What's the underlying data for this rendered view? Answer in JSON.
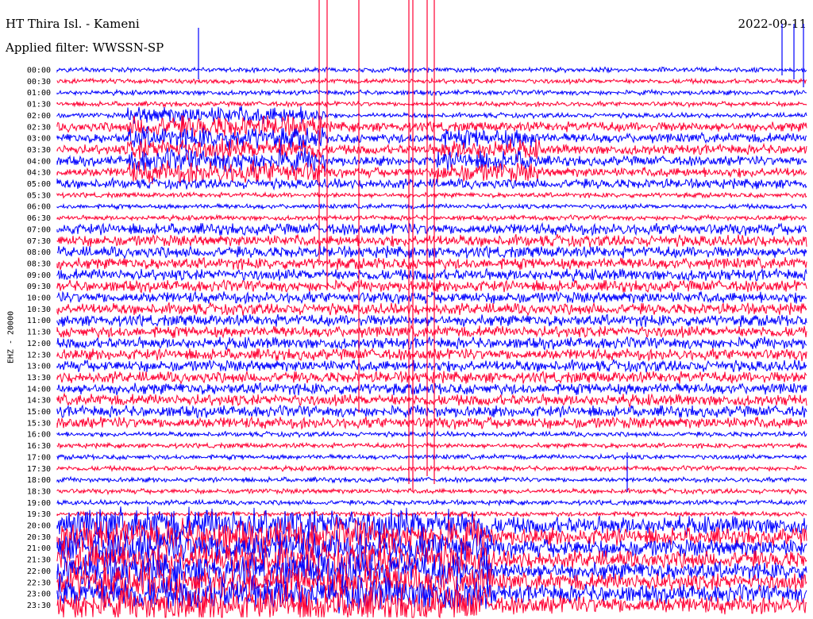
{
  "header": {
    "title": "HT Thira Isl. - Kameni",
    "filter": "Applied filter: WWSSN-SP",
    "date": "2022-09-11"
  },
  "chart_data": {
    "type": "line",
    "title": "HT Thira Isl. - Kameni",
    "ylabel": "EHZ - 20000",
    "xlabel": "",
    "rows": [
      "00:00",
      "00:30",
      "01:00",
      "01:30",
      "02:00",
      "02:30",
      "03:00",
      "03:30",
      "04:00",
      "04:30",
      "05:00",
      "05:30",
      "06:00",
      "06:30",
      "07:00",
      "07:30",
      "08:00",
      "08:30",
      "09:00",
      "09:30",
      "10:00",
      "10:30",
      "11:00",
      "11:30",
      "12:00",
      "12:30",
      "13:00",
      "13:30",
      "14:00",
      "14:30",
      "15:00",
      "15:30",
      "16:00",
      "16:30",
      "17:00",
      "17:30",
      "18:00",
      "18:30",
      "19:00",
      "19:30",
      "20:00",
      "20:30",
      "21:00",
      "21:30",
      "22:00",
      "22:30",
      "23:00",
      "23:30"
    ],
    "series_colors": [
      "#0000ff",
      "#ff0033"
    ],
    "grid": false
  }
}
